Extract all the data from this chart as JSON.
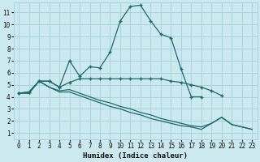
{
  "title": "",
  "xlabel": "Humidex (Indice chaleur)",
  "bg_color": "#cce9f0",
  "grid_color": "#a8d4dc",
  "line_color": "#1a6b6b",
  "xlim": [
    -0.5,
    23.5
  ],
  "ylim": [
    0.5,
    11.8
  ],
  "xticks": [
    0,
    1,
    2,
    3,
    4,
    5,
    6,
    7,
    8,
    9,
    10,
    11,
    12,
    13,
    14,
    15,
    16,
    17,
    18,
    19,
    20,
    21,
    22,
    23
  ],
  "yticks": [
    1,
    2,
    3,
    4,
    5,
    6,
    7,
    8,
    9,
    10,
    11
  ],
  "line1_x": [
    0,
    1,
    2,
    3,
    4,
    5,
    6,
    7,
    8,
    9,
    10,
    11,
    12,
    13,
    14,
    15,
    16,
    17,
    18
  ],
  "line1_y": [
    4.3,
    4.4,
    5.3,
    5.3,
    4.8,
    7.0,
    5.7,
    6.5,
    6.4,
    7.7,
    10.3,
    11.5,
    11.6,
    10.3,
    9.2,
    8.9,
    6.3,
    4.0,
    4.0
  ],
  "line2_x": [
    0,
    1,
    2,
    3,
    4,
    5,
    6,
    7,
    8,
    9,
    10,
    11,
    12,
    13,
    14,
    15,
    16,
    17,
    18,
    19,
    20
  ],
  "line2_y": [
    4.3,
    4.4,
    5.3,
    5.3,
    4.8,
    5.2,
    5.5,
    5.5,
    5.5,
    5.5,
    5.5,
    5.5,
    5.5,
    5.5,
    5.5,
    5.3,
    5.2,
    5.0,
    4.8,
    4.5,
    4.1
  ],
  "line3_x": [
    0,
    1,
    2,
    3,
    4,
    5,
    6,
    7,
    8,
    9,
    10,
    11,
    12,
    13,
    14,
    15,
    16,
    17,
    18,
    19,
    20,
    21,
    22,
    23
  ],
  "line3_y": [
    4.3,
    4.3,
    5.3,
    4.8,
    4.5,
    4.6,
    4.3,
    4.0,
    3.7,
    3.5,
    3.2,
    3.0,
    2.7,
    2.5,
    2.2,
    2.0,
    1.8,
    1.6,
    1.5,
    1.8,
    2.3,
    1.7,
    1.5,
    1.3
  ],
  "line4_x": [
    0,
    1,
    2,
    3,
    4,
    5,
    6,
    7,
    8,
    9,
    10,
    11,
    12,
    13,
    14,
    15,
    16,
    17,
    18,
    19,
    20,
    21,
    22,
    23
  ],
  "line4_y": [
    4.3,
    4.3,
    5.3,
    4.8,
    4.4,
    4.4,
    4.1,
    3.8,
    3.5,
    3.2,
    3.0,
    2.7,
    2.5,
    2.2,
    2.0,
    1.8,
    1.6,
    1.5,
    1.3,
    1.8,
    2.3,
    1.7,
    1.5,
    1.3
  ]
}
